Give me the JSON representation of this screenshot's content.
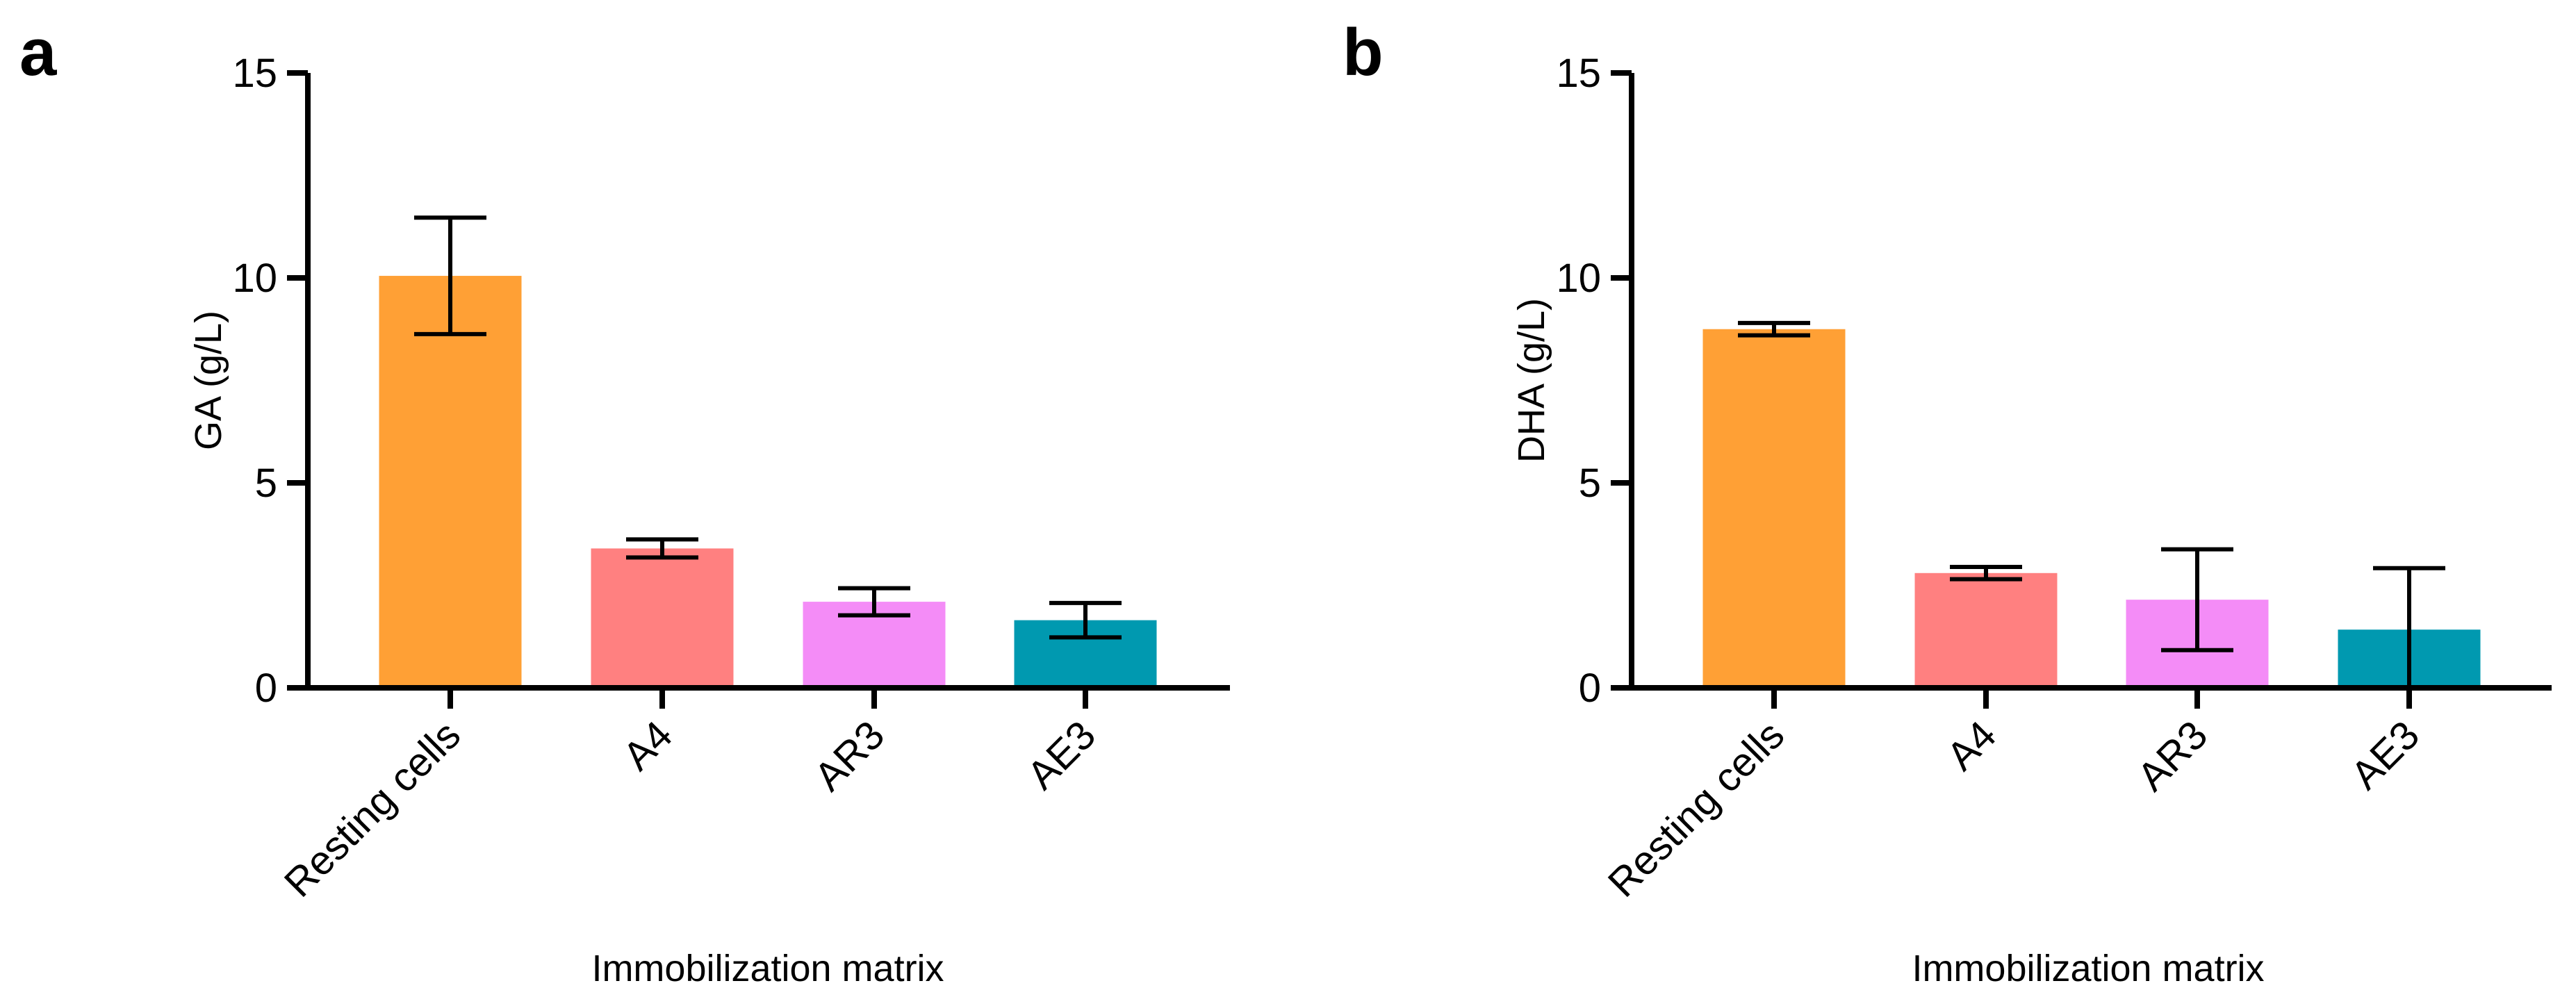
{
  "chart_data": [
    {
      "panel": "a",
      "type": "bar",
      "title": "",
      "xlabel": "Immobilization matrix",
      "ylabel": "GA (g/L)",
      "ylim": [
        0,
        15
      ],
      "yticks": [
        0,
        5,
        10,
        15
      ],
      "categories": [
        "Resting cells",
        "A4",
        "AR3",
        "AE3"
      ],
      "values": [
        10.05,
        3.4,
        2.1,
        1.65
      ],
      "errors": [
        1.42,
        0.22,
        0.33,
        0.42
      ],
      "colors": [
        "#ffa035",
        "#ff8080",
        "#f48cf7",
        "#0099b0"
      ],
      "grid": false
    },
    {
      "panel": "b",
      "type": "bar",
      "title": "",
      "xlabel": "Immobilization matrix",
      "ylabel": "DHA (g/L)",
      "ylim": [
        0,
        15
      ],
      "yticks": [
        0,
        5,
        10,
        15
      ],
      "categories": [
        "Resting cells",
        "A4",
        "AR3",
        "AE3"
      ],
      "values": [
        8.75,
        2.8,
        2.15,
        1.42
      ],
      "errors": [
        0.15,
        0.15,
        1.23,
        1.5
      ],
      "colors": [
        "#ffa035",
        "#ff8080",
        "#f48cf7",
        "#0099b0"
      ],
      "grid": false
    }
  ]
}
